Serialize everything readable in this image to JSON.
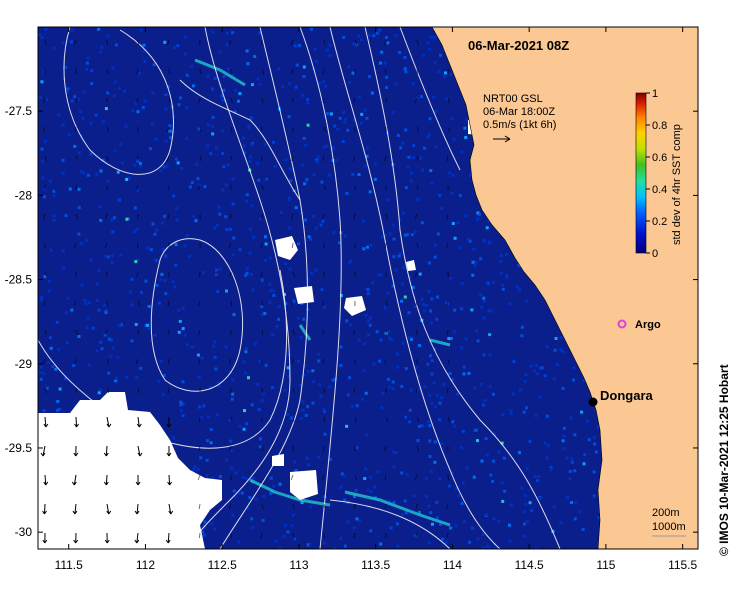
{
  "title": "06-Mar-2021 08Z",
  "product": {
    "line1": "NRT00 GSL",
    "line2": "06-Mar 18:00Z",
    "line3": "0.5m/s (1kt 6h)"
  },
  "colorbar": {
    "label": "std dev of 4hr SST comp",
    "ticks": [
      "0",
      "0.2",
      "0.4",
      "0.6",
      "0.8",
      "1"
    ],
    "min": 0,
    "max": 1
  },
  "places": {
    "dongara": "Dongara",
    "argo": "Argo"
  },
  "contour_legend": {
    "line1": "200m",
    "line2": "1000m"
  },
  "credit": "© IMOS 10-Mar-2021 12:25 Hobart",
  "axes": {
    "x_ticks": [
      "111.5",
      "112",
      "112.5",
      "113",
      "113.5",
      "114",
      "114.5",
      "115",
      "115.5"
    ],
    "y_ticks": [
      "-27.5",
      "-28",
      "-28.5",
      "-29",
      "-29.5",
      "-30"
    ],
    "x_values": [
      111.5,
      112,
      112.5,
      113,
      113.5,
      114,
      114.5,
      115,
      115.5
    ],
    "y_values": [
      -27.5,
      -28,
      -28.5,
      -29,
      -29.5,
      -30
    ],
    "xlim": [
      111.3,
      115.6
    ],
    "ylim": [
      -30.1,
      -27.0
    ]
  },
  "colors": {
    "land": "#fbc894",
    "ocean": "#0a1e8c",
    "cloud": "#ffffff",
    "argo_marker": "#e040e0"
  }
}
